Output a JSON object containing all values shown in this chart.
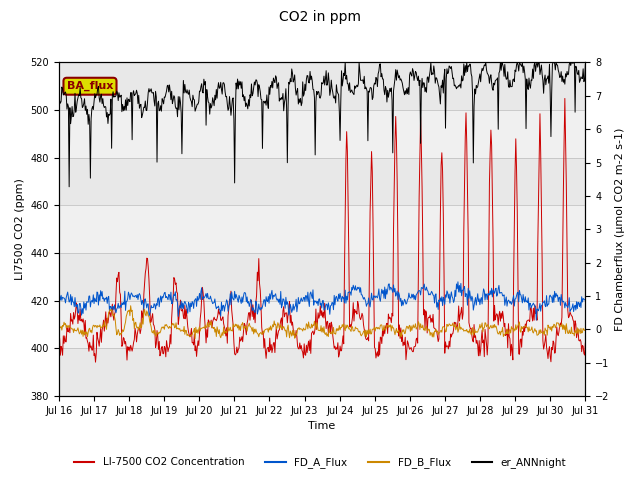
{
  "title": "CO2 in ppm",
  "ylabel_left": "LI7500 CO2 (ppm)",
  "ylabel_right": "FD Chamberflux (μmol CO2 m-2 s-1)",
  "xlabel": "Time",
  "ylim_left": [
    380,
    520
  ],
  "ylim_right": [
    -2.0,
    8.0
  ],
  "yticks_left": [
    380,
    400,
    420,
    440,
    460,
    480,
    500,
    520
  ],
  "yticks_right": [
    -2.0,
    -1.0,
    0.0,
    1.0,
    2.0,
    3.0,
    4.0,
    5.0,
    6.0,
    7.0,
    8.0
  ],
  "xtick_labels": [
    "Jul 16",
    "Jul 17",
    "Jul 18",
    "Jul 19",
    "Jul 20",
    "Jul 21",
    "Jul 22",
    "Jul 23",
    "Jul 24",
    "Jul 25",
    "Jul 26",
    "Jul 27",
    "Jul 28",
    "Jul 29",
    "Jul 30",
    "Jul 31"
  ],
  "legend_labels": [
    "LI-7500 CO2 Concentration",
    "FD_A_Flux",
    "FD_B_Flux",
    "er_ANNnight"
  ],
  "legend_colors": [
    "#cc0000",
    "#0055cc",
    "#cc8800",
    "#000000"
  ],
  "ba_flux_box_color": "#dddd00",
  "ba_flux_text_color": "#8b0000",
  "background_color": "#ffffff",
  "band_colors": [
    "#e8e8e8",
    "#f0f0f0"
  ],
  "grid_color": "#bbbbbb"
}
